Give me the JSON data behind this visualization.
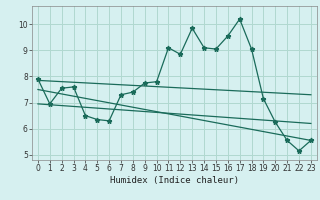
{
  "xlabel": "Humidex (Indice chaleur)",
  "bg_color": "#d6f0f0",
  "grid_color": "#b0d8d0",
  "line_color": "#1a6b5a",
  "xlim": [
    -0.5,
    23.5
  ],
  "ylim": [
    4.8,
    10.7
  ],
  "yticks": [
    5,
    6,
    7,
    8,
    9,
    10
  ],
  "xticks": [
    0,
    1,
    2,
    3,
    4,
    5,
    6,
    7,
    8,
    9,
    10,
    11,
    12,
    13,
    14,
    15,
    16,
    17,
    18,
    19,
    20,
    21,
    22,
    23
  ],
  "series_main": {
    "x": [
      0,
      1,
      2,
      3,
      4,
      5,
      6,
      7,
      8,
      9,
      10,
      11,
      12,
      13,
      14,
      15,
      16,
      17,
      18,
      19,
      20,
      21,
      22,
      23
    ],
    "y": [
      7.9,
      6.95,
      7.55,
      7.6,
      6.5,
      6.35,
      6.3,
      7.3,
      7.4,
      7.75,
      7.8,
      9.1,
      8.85,
      9.85,
      9.1,
      9.05,
      9.55,
      10.2,
      9.05,
      7.15,
      6.25,
      5.55,
      5.15,
      5.55
    ]
  },
  "line1": {
    "x": [
      0,
      23
    ],
    "y": [
      7.85,
      7.3
    ]
  },
  "line2": {
    "x": [
      0,
      23
    ],
    "y": [
      7.5,
      5.55
    ]
  },
  "line3": {
    "x": [
      0,
      23
    ],
    "y": [
      6.95,
      6.2
    ]
  }
}
